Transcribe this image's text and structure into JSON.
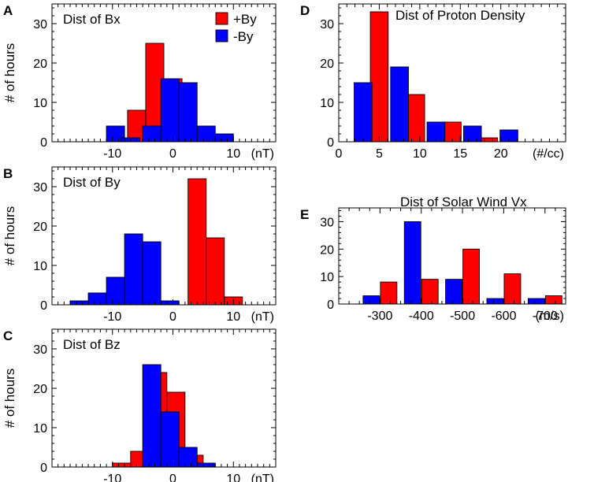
{
  "chart_data": [
    {
      "panel": "A",
      "type": "bar",
      "title": "Dist of Bx",
      "ylabel": "# of hours",
      "unit": "(nT)",
      "xlim": [
        -20,
        17
      ],
      "ylim": [
        0,
        35
      ],
      "xticks": [
        -10,
        0,
        10
      ],
      "yticks": [
        0,
        10,
        20,
        30
      ],
      "bin_width": 3,
      "series": [
        {
          "name": "+By",
          "color": "#ff0000",
          "x": [
            -6,
            -3,
            0,
            3
          ],
          "values": [
            8,
            25,
            16,
            2
          ]
        },
        {
          "name": "-By",
          "color": "#0000ff",
          "x": [
            -9.5,
            -7,
            -3.5,
            -0.5,
            2.5,
            5.5,
            8.5
          ],
          "values": [
            4,
            1,
            4,
            16,
            15,
            4,
            2
          ]
        }
      ]
    },
    {
      "panel": "B",
      "type": "bar",
      "title": "Dist of By",
      "ylabel": "# of hours",
      "unit": "(nT)",
      "xlim": [
        -20,
        17
      ],
      "ylim": [
        0,
        35
      ],
      "xticks": [
        -10,
        0,
        10
      ],
      "yticks": [
        0,
        10,
        20,
        30
      ],
      "bin_width": 3,
      "series": [
        {
          "name": "+By",
          "color": "#ff0000",
          "x": [
            4,
            7,
            10
          ],
          "values": [
            32,
            17,
            2
          ]
        },
        {
          "name": "-By",
          "color": "#0000ff",
          "x": [
            -15.5,
            -12.5,
            -9.5,
            -6.5,
            -3.5,
            -0.5
          ],
          "values": [
            1,
            3,
            7,
            18,
            16,
            1
          ]
        }
      ]
    },
    {
      "panel": "C",
      "type": "bar",
      "title": "Dist of Bz",
      "ylabel": "# of hours",
      "unit": "(nT)",
      "xlim": [
        -20,
        17
      ],
      "ylim": [
        0,
        35
      ],
      "xticks": [
        -10,
        0,
        10
      ],
      "yticks": [
        0,
        10,
        20,
        30
      ],
      "bin_width": 3,
      "series": [
        {
          "name": "+By",
          "color": "#ff0000",
          "x": [
            -8.5,
            -5.5,
            -2.5,
            0.5,
            3.5
          ],
          "values": [
            1,
            4,
            24,
            19,
            3
          ]
        },
        {
          "name": "-By",
          "color": "#0000ff",
          "x": [
            -3.5,
            -0.5,
            2.5,
            5.5
          ],
          "values": [
            26,
            14,
            5,
            1
          ]
        }
      ]
    },
    {
      "panel": "D",
      "type": "bar",
      "title": "Dist of Proton Density",
      "ylabel": "",
      "unit": "(#/cc)",
      "xlim": [
        0,
        28
      ],
      "ylim": [
        0,
        35
      ],
      "xticks": [
        0,
        5,
        10,
        15,
        20
      ],
      "yticks": [
        0,
        10,
        20,
        30
      ],
      "bin_width": 2.2,
      "series": [
        {
          "name": "+By",
          "color": "#ff0000",
          "x": [
            5,
            9.5,
            14,
            18.5
          ],
          "values": [
            33,
            12,
            5,
            1
          ]
        },
        {
          "name": "-By",
          "color": "#0000ff",
          "x": [
            3,
            7.5,
            12,
            16.5,
            21
          ],
          "values": [
            15,
            19,
            5,
            4,
            3
          ]
        }
      ]
    },
    {
      "panel": "E",
      "type": "bar",
      "title": "Dist of Solar Wind Vx",
      "ylabel": "",
      "unit": "(m/s)",
      "xlim": [
        0,
        5.5
      ],
      "ylim": [
        0,
        35
      ],
      "xticks": [
        1,
        2,
        3,
        4,
        5
      ],
      "xticklabels": [
        "-300",
        "-400",
        "-500",
        "-600",
        "-700"
      ],
      "yticks": [
        0,
        10,
        20,
        30
      ],
      "bin_width": 0.4,
      "series": [
        {
          "name": "+By",
          "color": "#ff0000",
          "x": [
            1.21,
            2.21,
            3.21,
            4.21,
            5.21
          ],
          "values": [
            8,
            9,
            20,
            11,
            3
          ]
        },
        {
          "name": "-By",
          "color": "#0000ff",
          "x": [
            0.79,
            1.79,
            2.79,
            3.79,
            4.79
          ],
          "values": [
            3,
            30,
            9,
            2,
            2
          ]
        }
      ]
    }
  ],
  "legend": {
    "items": [
      {
        "label": "+By",
        "color": "#ff0000"
      },
      {
        "label": "-By",
        "color": "#0000ff"
      }
    ]
  }
}
